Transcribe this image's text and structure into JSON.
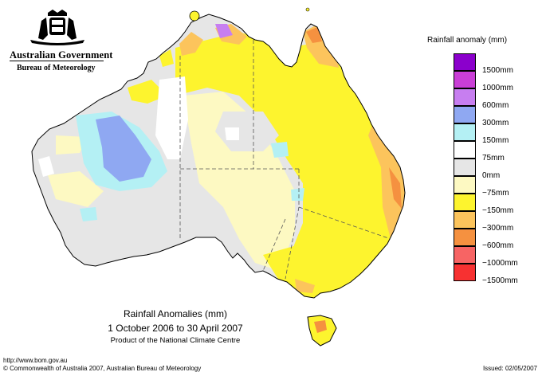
{
  "header": {
    "government": "Australian Government",
    "bureau": "Bureau of Meteorology"
  },
  "legend": {
    "title": "Rainfall anomaly (mm)",
    "items": [
      {
        "label": "1500mm",
        "color": "#8b00cc"
      },
      {
        "label": "1000mm",
        "color": "#c93ed6"
      },
      {
        "label": "600mm",
        "color": "#c77ef0"
      },
      {
        "label": "300mm",
        "color": "#8fa8f2"
      },
      {
        "label": "150mm",
        "color": "#b4f0f4"
      },
      {
        "label": "75mm",
        "color": "#ffffff"
      },
      {
        "label": "0mm",
        "color": "#e6e6e6"
      },
      {
        "label": "−75mm",
        "color": "#fdf9c2"
      },
      {
        "label": "−150mm",
        "color": "#fdf42e"
      },
      {
        "label": "−300mm",
        "color": "#fcc45c"
      },
      {
        "label": "−600mm",
        "color": "#f59140"
      },
      {
        "label": "−1000mm",
        "color": "#f76464"
      },
      {
        "label": "−1500mm",
        "color": "#f73131"
      }
    ]
  },
  "caption": {
    "title": "Rainfall Anomalies (mm)",
    "period": "1 October 2006 to 30 April 2007",
    "product": "Product of the National Climate Centre"
  },
  "footer": {
    "url": "http://www.bom.gov.au",
    "copyright": "© Commonwealth of Australia 2007, Australian Bureau of Meteorology",
    "issued": "Issued: 02/05/2007"
  },
  "colors": {
    "yellow": "#fdf42e",
    "pale_yellow": "#fdf9c2",
    "grey": "#e6e6e6",
    "orange": "#fcc45c",
    "dark_orange": "#f59140",
    "cyan": "#b4f0f4",
    "blue": "#8fa8f2",
    "purple": "#c77ef0"
  }
}
